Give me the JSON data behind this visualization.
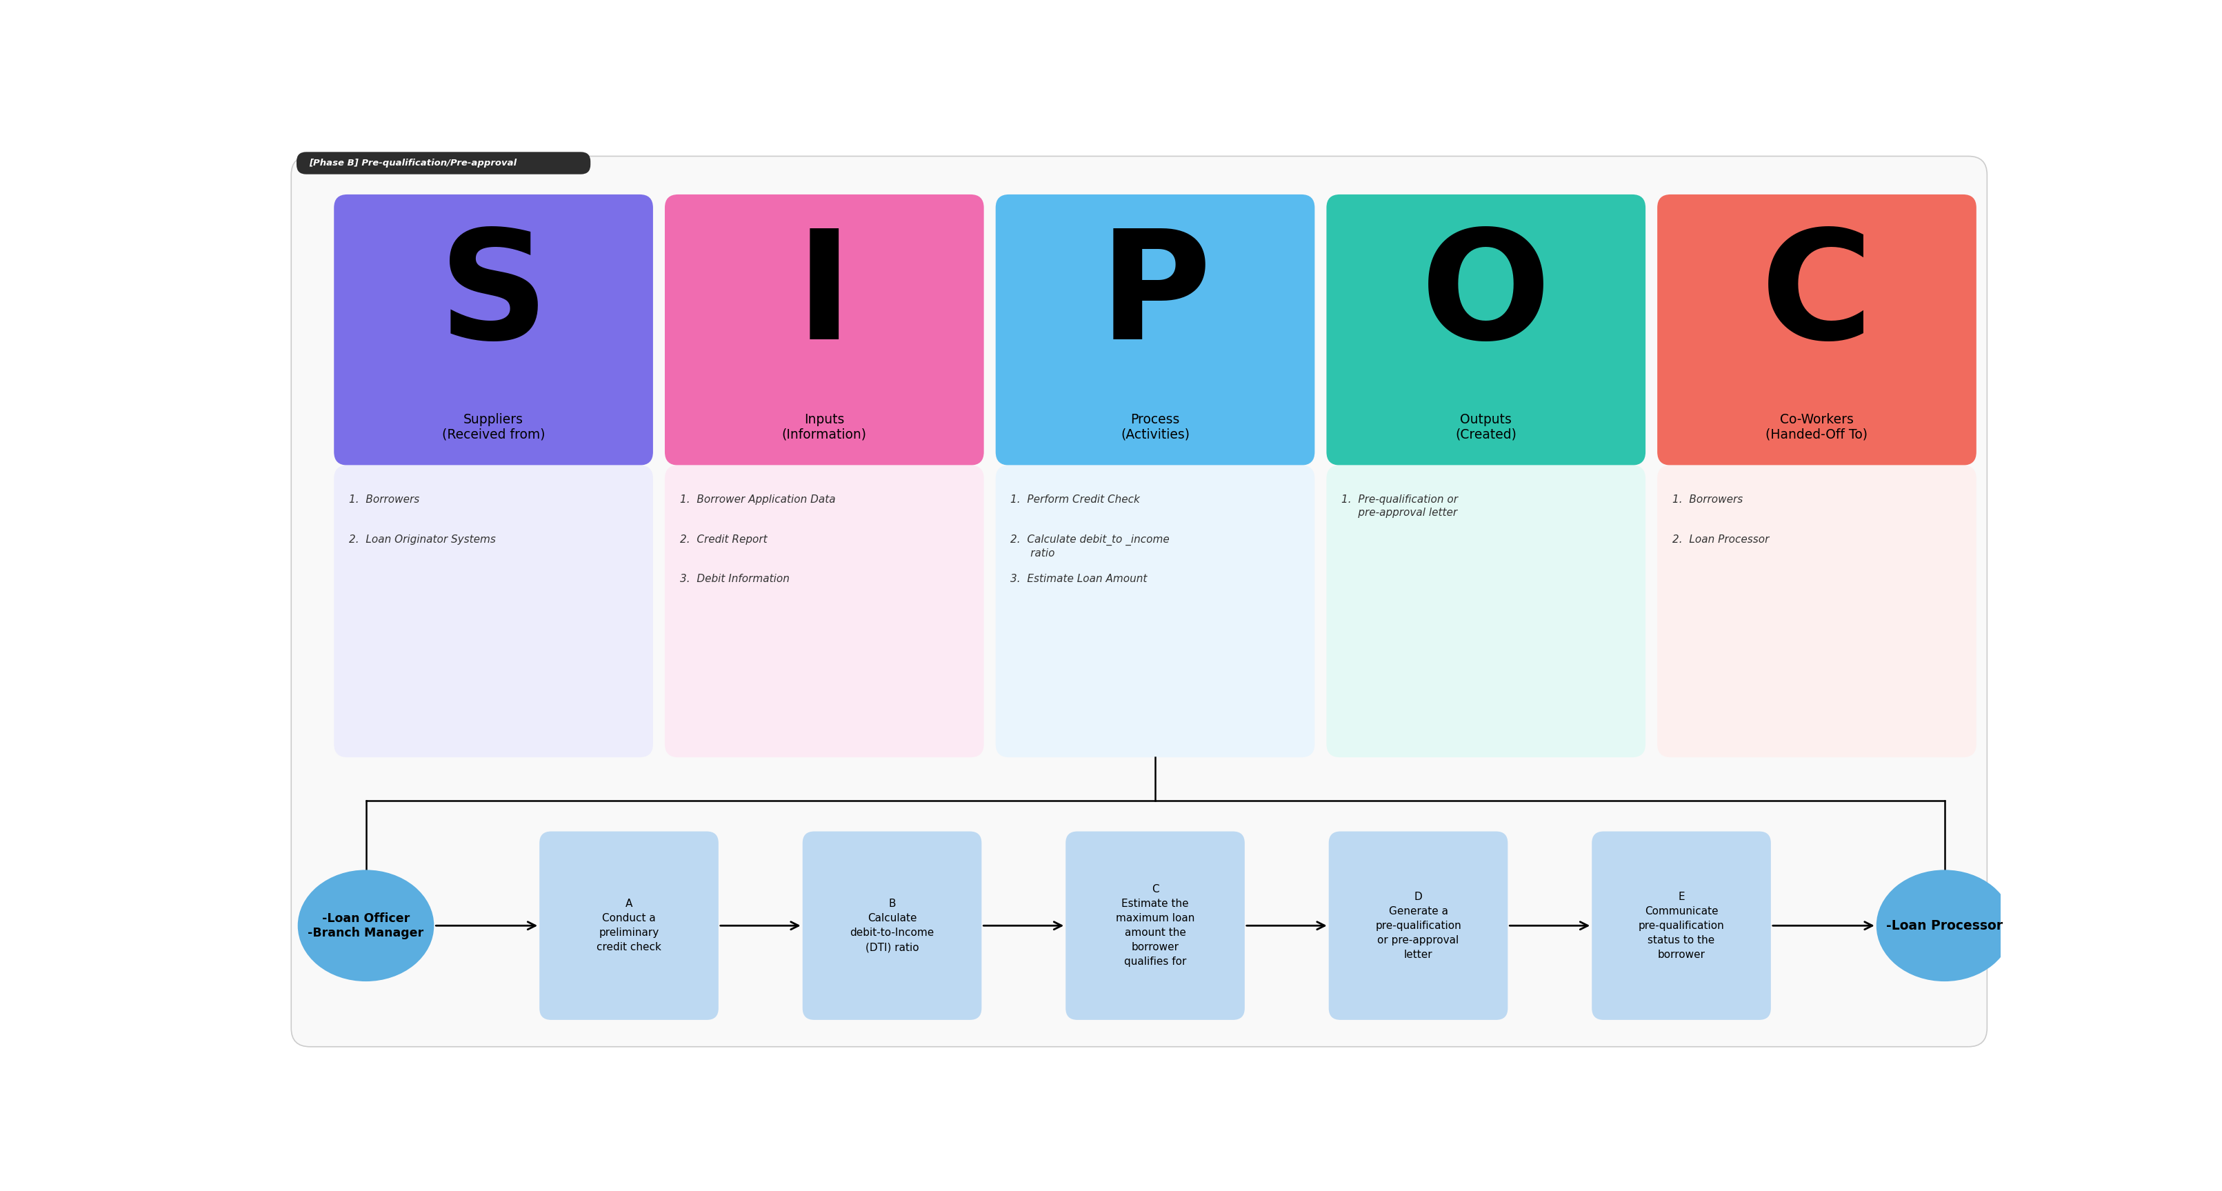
{
  "title": "[Phase B] Pre-qualification/Pre-approval",
  "bg_color": "#ffffff",
  "header_bar_color": "#2d2d2d",
  "sipoc_letters": [
    "S",
    "I",
    "P",
    "O",
    "C"
  ],
  "sipoc_header_colors": [
    "#7B6FE8",
    "#F06CB0",
    "#59BBEF",
    "#2EC4AD",
    "#F16B5E"
  ],
  "sipoc_body_colors": [
    "#EDEDFC",
    "#FCEAF4",
    "#EAF5FD",
    "#E4F9F5",
    "#FDF0EF"
  ],
  "sipoc_titles": [
    "Suppliers\n(Received from)",
    "Inputs\n(Information)",
    "Process\n(Activities)",
    "Outputs\n(Created)",
    "Co-Workers\n(Handed-Off To)"
  ],
  "sipoc_items": [
    [
      "1.  Borrowers",
      "2.  Loan Originator Systems"
    ],
    [
      "1.  Borrower Application Data",
      "2.  Credit Report",
      "3.  Debit Information"
    ],
    [
      "1.  Perform Credit Check",
      "2.  Calculate debit_to _income\n      ratio",
      "3.  Estimate Loan Amount"
    ],
    [
      "1.  Pre-qualification or\n     pre-approval letter"
    ],
    [
      "1.  Borrowers",
      "2.  Loan Processor"
    ]
  ],
  "flow_oval_color": "#5BAEE0",
  "flow_rect_color": "#BDD9F2",
  "flow_left_label": "-Loan Officer\n-Branch Manager",
  "flow_right_label": "-Loan Processor",
  "flow_rect_labels": [
    "A\nConduct a\npreliminary\ncredit check",
    "B\nCalculate\ndebit-to-Income\n(DTI) ratio",
    "C\nEstimate the\nmaximum loan\namount the\nborrower\nqualifies for",
    "D\nGenerate a\npre-qualification\nor pre-approval\nletter",
    "E\nCommunicate\npre-qualification\nstatus to the\nborrower"
  ]
}
